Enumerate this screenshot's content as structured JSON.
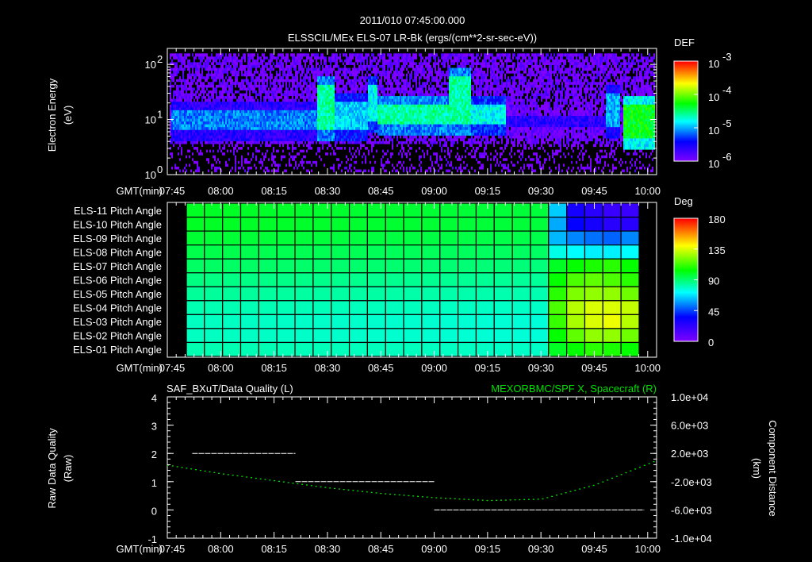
{
  "header": {
    "title": "2011/010 07:45:00.000",
    "subtitle": "ELSSCIL/MEx ELS-07 LR-Bk  (ergs/(cm**2-sr-sec-eV))"
  },
  "time_axis": {
    "label": "GMT(min)",
    "ticks": [
      "07:45",
      "08:00",
      "08:15",
      "08:30",
      "08:45",
      "09:00",
      "09:15",
      "09:30",
      "09:45",
      "10:00"
    ],
    "range_minutes_after_0745": [
      0,
      137.5
    ]
  },
  "chart_data": [
    {
      "type": "heatmap",
      "name": "electron-spectrogram",
      "ylabel": "Electron Energy",
      "yunit": "(eV)",
      "yscale": "log",
      "ylim": [
        1,
        195
      ],
      "yticks": [
        {
          "v": 1,
          "label": "10",
          "exp": "0"
        },
        {
          "v": 10,
          "label": "10",
          "exp": "1"
        },
        {
          "v": 100,
          "label": "10",
          "exp": "2"
        }
      ],
      "colorbar": {
        "title": "DEF",
        "scale": "log",
        "range": [
          -6,
          -3
        ],
        "ticks": [
          {
            "label": "10",
            "exp": "-3"
          },
          {
            "label": "10",
            "exp": "-4"
          },
          {
            "label": "10",
            "exp": "-5"
          },
          {
            "label": "10",
            "exp": "-6"
          }
        ]
      },
      "background_log_def": -6.0,
      "bands": [
        {
          "start": "07:46",
          "end": "08:27",
          "lo_eV": 4.5,
          "hi_eV": 20,
          "log_def": -5.1
        },
        {
          "start": "08:27",
          "end": "08:32",
          "lo_eV": 4.5,
          "hi_eV": 60,
          "log_def": -4.6
        },
        {
          "start": "08:32",
          "end": "08:41",
          "lo_eV": 4.5,
          "hi_eV": 30,
          "log_def": -4.9
        },
        {
          "start": "08:41",
          "end": "08:44",
          "lo_eV": 6,
          "hi_eV": 60,
          "log_def": -4.8
        },
        {
          "start": "08:44",
          "end": "09:04",
          "lo_eV": 5.5,
          "hi_eV": 25,
          "log_def": -4.6
        },
        {
          "start": "09:04",
          "end": "09:10",
          "lo_eV": 5.5,
          "hi_eV": 80,
          "log_def": -4.6
        },
        {
          "start": "09:10",
          "end": "09:20",
          "lo_eV": 5.5,
          "hi_eV": 25,
          "log_def": -4.8
        },
        {
          "start": "09:20",
          "end": "09:48",
          "lo_eV": 5,
          "hi_eV": 15,
          "log_def": -5.6
        },
        {
          "start": "09:48",
          "end": "09:52",
          "lo_eV": 5,
          "hi_eV": 40,
          "log_def": -5.0
        },
        {
          "start": "09:53",
          "end": "10:02",
          "lo_eV": 3.2,
          "hi_eV": 25,
          "log_def": -4.3
        }
      ]
    },
    {
      "type": "heatmap",
      "name": "pitch-angle",
      "rows": [
        "ELS-11 Pitch Angle",
        "ELS-10 Pitch Angle",
        "ELS-09 Pitch Angle",
        "ELS-08 Pitch Angle",
        "ELS-07 Pitch Angle",
        "ELS-06 Pitch Angle",
        "ELS-05 Pitch Angle",
        "ELS-04 Pitch Angle",
        "ELS-03 Pitch Angle",
        "ELS-02 Pitch Angle",
        "ELS-01 Pitch Angle"
      ],
      "time_start": "07:50",
      "time_end": "09:58",
      "columns": 25,
      "base_deg": [
        100,
        100,
        98,
        95,
        92,
        88,
        85,
        82,
        80,
        80,
        82
      ],
      "last_columns_deg": [
        [
          65,
          30,
          25,
          20,
          20
        ],
        [
          60,
          35,
          30,
          25,
          25
        ],
        [
          62,
          55,
          52,
          50,
          55
        ],
        [
          75,
          72,
          70,
          70,
          72
        ],
        [
          100,
          105,
          108,
          110,
          105
        ],
        [
          105,
          115,
          118,
          115,
          110
        ],
        [
          110,
          122,
          125,
          125,
          120
        ],
        [
          115,
          130,
          135,
          135,
          132
        ],
        [
          112,
          128,
          135,
          138,
          130
        ],
        [
          105,
          118,
          125,
          125,
          120
        ],
        [
          100,
          105,
          110,
          108,
          105
        ]
      ],
      "colorbar": {
        "title": "Deg",
        "range": [
          0,
          180
        ],
        "ticks": [
          "180",
          "135",
          "90",
          "45",
          "0"
        ]
      }
    },
    {
      "type": "line",
      "name": "data-quality-and-position",
      "title_left": "SAF_BXuT/Data Quality (L)",
      "title_right": "MEXORBMC/SPF X, Spacecraft (R)",
      "ylabel_left": "Raw Data Quality",
      "ylabel_left_unit": "(Raw)",
      "ylabel_right": "Component Distance",
      "ylabel_right_unit": "(km)",
      "ylim_left": [
        -1,
        4
      ],
      "yticks_left": [
        "4",
        "3",
        "2",
        "1",
        "0",
        "-1"
      ],
      "ylim_right": [
        -10000,
        10000
      ],
      "yticks_right": [
        "1.0e+04",
        "6.0e+03",
        "2.0e+03",
        "-2.0e+03",
        "-6.0e+03",
        "-1.0e+04"
      ],
      "quality_segments": [
        {
          "start": "07:52",
          "end": "08:21",
          "value": 2
        },
        {
          "start": "08:21",
          "end": "09:00",
          "value": 1
        },
        {
          "start": "09:00",
          "end": "09:59",
          "value": 0
        }
      ],
      "spf_x_km": {
        "times": [
          "07:45",
          "08:00",
          "08:15",
          "08:30",
          "08:45",
          "09:00",
          "09:15",
          "09:30",
          "09:45",
          "10:02"
        ],
        "values": [
          400,
          -800,
          -1800,
          -2800,
          -3600,
          -4200,
          -4600,
          -4400,
          -2400,
          1000
        ]
      }
    }
  ]
}
